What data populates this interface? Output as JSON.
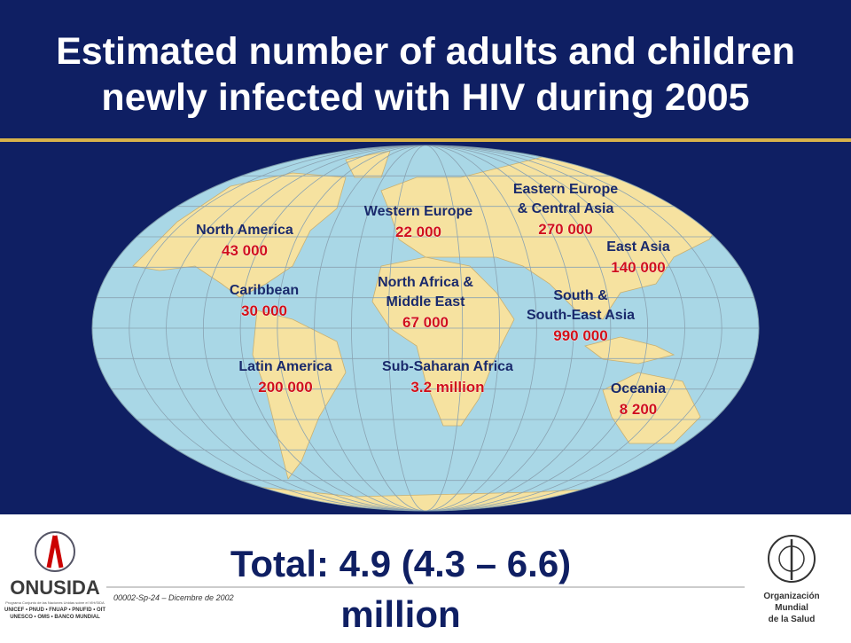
{
  "title": [
    "Estimated number of adults and children",
    "newly infected with HIV during 2005"
  ],
  "regions": [
    {
      "name": [
        "North America"
      ],
      "value": "43 000"
    },
    {
      "name": [
        "Caribbean"
      ],
      "value": "30 000"
    },
    {
      "name": [
        "Latin America"
      ],
      "value": "200 000"
    },
    {
      "name": [
        "Western Europe"
      ],
      "value": "22 000"
    },
    {
      "name": [
        "North Africa &",
        "Middle East"
      ],
      "value": "67 000"
    },
    {
      "name": [
        "Sub-Saharan Africa"
      ],
      "value": "3.2 million"
    },
    {
      "name": [
        "Eastern Europe",
        "& Central Asia"
      ],
      "value": "270 000"
    },
    {
      "name": [
        "East Asia"
      ],
      "value": "140 000"
    },
    {
      "name": [
        "South &",
        "South-East Asia"
      ],
      "value": "990 000"
    },
    {
      "name": [
        "Oceania"
      ],
      "value": "8 200"
    }
  ],
  "footer": {
    "total": [
      "Total: 4.9 (4.3 – 6.6)",
      "million"
    ],
    "code": "00002-Sp-24 – Dicembre de 2002",
    "left_logo": {
      "name": "ONUSIDA",
      "program": "Programa Conjunto de las Naciones Unidas sobre el VIH/SIDA",
      "members": [
        "UNICEF • PNUD • FNUAP • PNUFID • OIT",
        "UNESCO • OMS • BANCO MUNDIAL"
      ]
    },
    "right_logo": [
      "Organización",
      "Mundial",
      "de la Salud"
    ]
  }
}
